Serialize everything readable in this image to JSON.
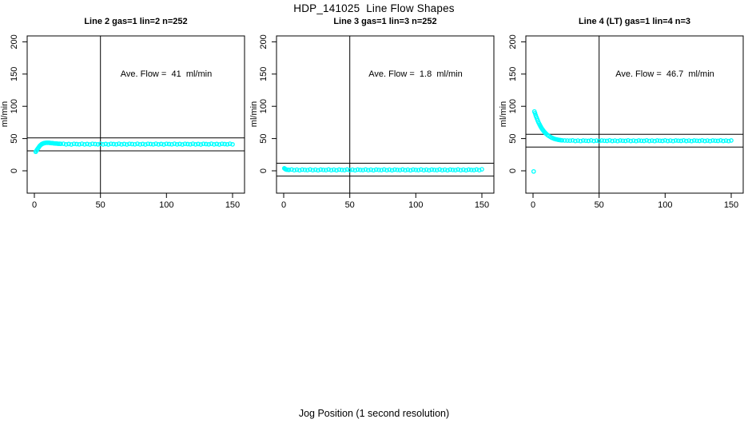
{
  "main_title": "HDP_141025  Line Flow Shapes",
  "bottom_label": "Jog Position (1 second resolution)",
  "axes": {
    "x_ticks": [
      "0",
      "50",
      "100",
      "150"
    ],
    "y_ticks": [
      "0",
      "50",
      "100",
      "150",
      "200"
    ],
    "ylabel": "ml/min"
  },
  "marker": {
    "shape": "open-circle",
    "color": "#00FFFF"
  },
  "chart_data": [
    {
      "type": "scatter",
      "title": "Line 2 gas=1 lin=2 n=252",
      "annotation": "Ave. Flow =  41  ml/min",
      "ave_flow": 41,
      "n": 252,
      "xlabel": "Jog Position (1 second resolution)",
      "ylabel": "ml/min",
      "xlim": [
        -6,
        156
      ],
      "ylim": [
        -35,
        209
      ],
      "x_ticks": [
        0,
        50,
        100,
        150
      ],
      "y_ticks": [
        0,
        50,
        100,
        150,
        200
      ],
      "grid": false,
      "legend": false,
      "vline_x": 50,
      "hlines": [
        51,
        31
      ],
      "marker_color": "#00FFFF",
      "points": [
        [
          1,
          29.5
        ],
        [
          1.5,
          31
        ],
        [
          2,
          32.5
        ],
        [
          2.5,
          34
        ],
        [
          3,
          35.5
        ],
        [
          3.5,
          37
        ],
        [
          4,
          38.4
        ],
        [
          4.5,
          39.5
        ],
        [
          5,
          40.4
        ],
        [
          5.5,
          41.2
        ],
        [
          6,
          41.8
        ],
        [
          6.5,
          42.3
        ],
        [
          7,
          42.7
        ],
        [
          7.5,
          43
        ],
        [
          8,
          43.2
        ],
        [
          9,
          43.4
        ],
        [
          10,
          43.5
        ],
        [
          11,
          43.4
        ],
        [
          12,
          43.2
        ],
        [
          13,
          43
        ],
        [
          14,
          42.8
        ],
        [
          15,
          42.5
        ],
        [
          16,
          42.3
        ],
        [
          17,
          42.2
        ],
        [
          18,
          42
        ],
        [
          19,
          41.9
        ],
        [
          20,
          41.8
        ],
        [
          22,
          42
        ],
        [
          24,
          41
        ],
        [
          26,
          41.6
        ],
        [
          28,
          40.8
        ],
        [
          30,
          41.8
        ],
        [
          32,
          41.4
        ],
        [
          34,
          41.1
        ],
        [
          36,
          42
        ],
        [
          38,
          41
        ],
        [
          40,
          41.6
        ],
        [
          42,
          40.8
        ],
        [
          44,
          41.8
        ],
        [
          46,
          41.4
        ],
        [
          48,
          41.1
        ],
        [
          50,
          42
        ],
        [
          52,
          41
        ],
        [
          54,
          41.6
        ],
        [
          56,
          40.8
        ],
        [
          58,
          41.8
        ],
        [
          60,
          41.4
        ],
        [
          62,
          41.1
        ],
        [
          64,
          42
        ],
        [
          66,
          41
        ],
        [
          68,
          41.6
        ],
        [
          70,
          40.8
        ],
        [
          72,
          41.8
        ],
        [
          74,
          41.4
        ],
        [
          76,
          41.1
        ],
        [
          78,
          42
        ],
        [
          80,
          41
        ],
        [
          82,
          41.6
        ],
        [
          84,
          40.8
        ],
        [
          86,
          41.8
        ],
        [
          88,
          41.4
        ],
        [
          90,
          41.1
        ],
        [
          92,
          42
        ],
        [
          94,
          41
        ],
        [
          96,
          41.6
        ],
        [
          98,
          40.8
        ],
        [
          100,
          41.8
        ],
        [
          102,
          41.4
        ],
        [
          104,
          41.1
        ],
        [
          106,
          42
        ],
        [
          108,
          41
        ],
        [
          110,
          41.6
        ],
        [
          112,
          40.8
        ],
        [
          114,
          41.8
        ],
        [
          116,
          41.4
        ],
        [
          118,
          41.1
        ],
        [
          120,
          42
        ],
        [
          122,
          41
        ],
        [
          124,
          41.6
        ],
        [
          126,
          40.8
        ],
        [
          128,
          41.8
        ],
        [
          130,
          41.4
        ],
        [
          132,
          41.1
        ],
        [
          134,
          42
        ],
        [
          136,
          41
        ],
        [
          138,
          41.6
        ],
        [
          140,
          40.8
        ],
        [
          142,
          41.8
        ],
        [
          144,
          41.4
        ],
        [
          146,
          41.1
        ],
        [
          148,
          42
        ],
        [
          150,
          41
        ]
      ]
    },
    {
      "type": "scatter",
      "title": "Line 3 gas=1 lin=3 n=252",
      "annotation": "Ave. Flow =  1.8  ml/min",
      "ave_flow": 1.8,
      "n": 252,
      "xlabel": "Jog Position (1 second resolution)",
      "ylabel": "ml/min",
      "xlim": [
        -6,
        156
      ],
      "ylim": [
        -35,
        209
      ],
      "x_ticks": [
        0,
        50,
        100,
        150
      ],
      "y_ticks": [
        0,
        50,
        100,
        150,
        200
      ],
      "grid": false,
      "legend": false,
      "vline_x": 50,
      "hlines": [
        11.8,
        -8.2
      ],
      "marker_color": "#00FFFF",
      "points": [
        [
          0.5,
          3.8
        ],
        [
          1,
          3
        ],
        [
          1.5,
          2.3
        ],
        [
          2,
          1.9
        ],
        [
          3,
          1.6
        ],
        [
          4,
          1.4
        ],
        [
          6,
          2
        ],
        [
          8,
          1
        ],
        [
          10,
          1.7
        ],
        [
          12,
          0.9
        ],
        [
          14,
          1.9
        ],
        [
          16,
          1.4
        ],
        [
          18,
          1.1
        ],
        [
          20,
          2
        ],
        [
          22,
          1
        ],
        [
          24,
          1.7
        ],
        [
          26,
          0.9
        ],
        [
          28,
          1.9
        ],
        [
          30,
          1.4
        ],
        [
          32,
          1.1
        ],
        [
          34,
          2
        ],
        [
          36,
          1
        ],
        [
          38,
          1.7
        ],
        [
          40,
          0.9
        ],
        [
          42,
          1.9
        ],
        [
          44,
          1.4
        ],
        [
          46,
          1.1
        ],
        [
          48,
          2
        ],
        [
          50,
          1
        ],
        [
          52,
          1.7
        ],
        [
          54,
          0.9
        ],
        [
          56,
          1.9
        ],
        [
          58,
          1.4
        ],
        [
          60,
          1.1
        ],
        [
          62,
          2
        ],
        [
          64,
          1
        ],
        [
          66,
          1.7
        ],
        [
          68,
          0.9
        ],
        [
          70,
          1.9
        ],
        [
          72,
          1.4
        ],
        [
          74,
          1.1
        ],
        [
          76,
          2
        ],
        [
          78,
          1
        ],
        [
          80,
          1.7
        ],
        [
          82,
          0.9
        ],
        [
          84,
          1.9
        ],
        [
          86,
          1.4
        ],
        [
          88,
          1.1
        ],
        [
          90,
          2
        ],
        [
          92,
          1
        ],
        [
          94,
          1.7
        ],
        [
          96,
          0.9
        ],
        [
          98,
          1.9
        ],
        [
          100,
          1.4
        ],
        [
          102,
          1.1
        ],
        [
          104,
          2
        ],
        [
          106,
          1
        ],
        [
          108,
          1.7
        ],
        [
          110,
          0.9
        ],
        [
          112,
          1.9
        ],
        [
          114,
          1.4
        ],
        [
          116,
          1.1
        ],
        [
          118,
          2
        ],
        [
          120,
          1
        ],
        [
          122,
          1.7
        ],
        [
          124,
          0.9
        ],
        [
          126,
          1.9
        ],
        [
          128,
          1.4
        ],
        [
          130,
          1.1
        ],
        [
          132,
          2
        ],
        [
          134,
          1
        ],
        [
          136,
          1.7
        ],
        [
          138,
          0.9
        ],
        [
          140,
          1.9
        ],
        [
          142,
          1.4
        ],
        [
          144,
          1.1
        ],
        [
          146,
          2
        ],
        [
          148,
          1
        ],
        [
          150,
          2.3
        ]
      ]
    },
    {
      "type": "scatter",
      "title": "Line 4 (LT) gas=1 lin=4 n=3",
      "annotation": "Ave. Flow =  46.7  ml/min",
      "ave_flow": 46.7,
      "n": 3,
      "xlabel": "Jog Position (1 second resolution)",
      "ylabel": "ml/min",
      "xlim": [
        -6,
        156
      ],
      "ylim": [
        -35,
        209
      ],
      "x_ticks": [
        0,
        50,
        100,
        150
      ],
      "y_ticks": [
        0,
        50,
        100,
        150,
        200
      ],
      "grid": false,
      "legend": false,
      "vline_x": 50,
      "hlines": [
        56.7,
        36.7
      ],
      "marker_color": "#00FFFF",
      "points": [
        [
          0.5,
          -1
        ],
        [
          1,
          92
        ],
        [
          1.5,
          89.3
        ],
        [
          2,
          86.2
        ],
        [
          2.5,
          83.4
        ],
        [
          3,
          80.7
        ],
        [
          3.5,
          78.2
        ],
        [
          4,
          75.8
        ],
        [
          4.5,
          73.6
        ],
        [
          5,
          71.5
        ],
        [
          5.5,
          69.6
        ],
        [
          6,
          67.8
        ],
        [
          6.5,
          66.1
        ],
        [
          7,
          64.5
        ],
        [
          7.5,
          63.1
        ],
        [
          8,
          61.7
        ],
        [
          8.5,
          60.5
        ],
        [
          9,
          59.3
        ],
        [
          9.5,
          58.3
        ],
        [
          10,
          57.3
        ],
        [
          11,
          55.5
        ],
        [
          12,
          54
        ],
        [
          13,
          52.7
        ],
        [
          14,
          51.5
        ],
        [
          15,
          50.6
        ],
        [
          16,
          49.8
        ],
        [
          17,
          49.1
        ],
        [
          18,
          48.6
        ],
        [
          19,
          48.1
        ],
        [
          20,
          47.8
        ],
        [
          21,
          47.5
        ],
        [
          22,
          47.3
        ],
        [
          24,
          47
        ],
        [
          26,
          46.9
        ],
        [
          28,
          46.8
        ],
        [
          30,
          47.1
        ],
        [
          32,
          46.3
        ],
        [
          34,
          46.9
        ],
        [
          36,
          46.2
        ],
        [
          38,
          47
        ],
        [
          40,
          46.7
        ],
        [
          42,
          46.4
        ],
        [
          44,
          47.1
        ],
        [
          46,
          46.3
        ],
        [
          48,
          46.9
        ],
        [
          50,
          46.2
        ],
        [
          52,
          47
        ],
        [
          54,
          46.7
        ],
        [
          56,
          46.4
        ],
        [
          58,
          47.1
        ],
        [
          60,
          46.3
        ],
        [
          62,
          46.9
        ],
        [
          64,
          46.2
        ],
        [
          66,
          47
        ],
        [
          68,
          46.7
        ],
        [
          70,
          46.4
        ],
        [
          72,
          47.1
        ],
        [
          74,
          46.3
        ],
        [
          76,
          46.9
        ],
        [
          78,
          46.2
        ],
        [
          80,
          47
        ],
        [
          82,
          46.7
        ],
        [
          84,
          46.4
        ],
        [
          86,
          47.1
        ],
        [
          88,
          46.3
        ],
        [
          90,
          46.9
        ],
        [
          92,
          46.2
        ],
        [
          94,
          47
        ],
        [
          96,
          46.7
        ],
        [
          98,
          46.4
        ],
        [
          100,
          47.1
        ],
        [
          102,
          46.3
        ],
        [
          104,
          46.9
        ],
        [
          106,
          46.2
        ],
        [
          108,
          47
        ],
        [
          110,
          46.7
        ],
        [
          112,
          46.4
        ],
        [
          114,
          47.1
        ],
        [
          116,
          46.3
        ],
        [
          118,
          46.9
        ],
        [
          120,
          46.2
        ],
        [
          122,
          47
        ],
        [
          124,
          46.7
        ],
        [
          126,
          46.4
        ],
        [
          128,
          47.1
        ],
        [
          130,
          46.3
        ],
        [
          132,
          46.9
        ],
        [
          134,
          46.2
        ],
        [
          136,
          47
        ],
        [
          138,
          46.7
        ],
        [
          140,
          46.4
        ],
        [
          142,
          47.1
        ],
        [
          144,
          46.3
        ],
        [
          146,
          46.9
        ],
        [
          148,
          46.2
        ],
        [
          150,
          47
        ]
      ]
    }
  ]
}
